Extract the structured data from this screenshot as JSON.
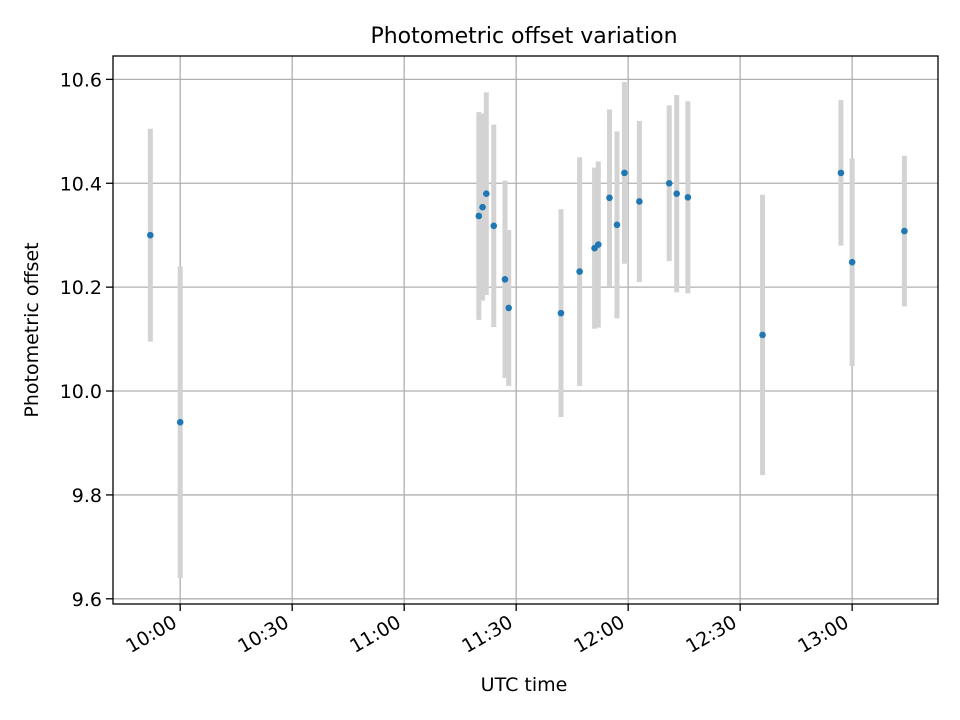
{
  "chart_data": {
    "type": "scatter",
    "title": "Photometric offset variation",
    "xlabel": "UTC time",
    "ylabel": "Photometric offset",
    "x_kind": "time",
    "xlim": [
      "09:42",
      "13:23"
    ],
    "ylim": [
      9.59,
      10.645
    ],
    "x_ticks": [
      "10:00",
      "10:30",
      "11:00",
      "11:30",
      "12:00",
      "12:30",
      "13:00"
    ],
    "y_ticks": [
      "9.6",
      "9.8",
      "10.0",
      "10.2",
      "10.4",
      "10.6"
    ],
    "grid": true,
    "colors": {
      "points": "#1f77b4",
      "errorbars": "#d3d3d3",
      "grid": "#b0b0b0"
    },
    "points": [
      {
        "t": "09:52",
        "y": 10.3,
        "err": 0.205
      },
      {
        "t": "10:00",
        "y": 9.94,
        "err": 0.3
      },
      {
        "t": "11:20",
        "y": 10.337,
        "err": 0.2
      },
      {
        "t": "11:21",
        "y": 10.354,
        "err": 0.18
      },
      {
        "t": "11:22",
        "y": 10.38,
        "err": 0.195
      },
      {
        "t": "11:24",
        "y": 10.318,
        "err": 0.195
      },
      {
        "t": "11:27",
        "y": 10.215,
        "err": 0.19
      },
      {
        "t": "11:28",
        "y": 10.16,
        "err": 0.15
      },
      {
        "t": "11:42",
        "y": 10.15,
        "err": 0.2
      },
      {
        "t": "11:47",
        "y": 10.23,
        "err": 0.22
      },
      {
        "t": "11:51",
        "y": 10.275,
        "err": 0.155
      },
      {
        "t": "11:52",
        "y": 10.282,
        "err": 0.16
      },
      {
        "t": "11:55",
        "y": 10.372,
        "err": 0.17
      },
      {
        "t": "11:57",
        "y": 10.32,
        "err": 0.18
      },
      {
        "t": "11:59",
        "y": 10.42,
        "err": 0.175
      },
      {
        "t": "12:03",
        "y": 10.365,
        "err": 0.155
      },
      {
        "t": "12:11",
        "y": 10.4,
        "err": 0.15
      },
      {
        "t": "12:13",
        "y": 10.38,
        "err": 0.19
      },
      {
        "t": "12:16",
        "y": 10.373,
        "err": 0.185
      },
      {
        "t": "12:36",
        "y": 10.108,
        "err": 0.27
      },
      {
        "t": "12:57",
        "y": 10.42,
        "err": 0.14
      },
      {
        "t": "13:00",
        "y": 10.248,
        "err": 0.2
      },
      {
        "t": "13:14",
        "y": 10.308,
        "err": 0.145
      }
    ]
  }
}
